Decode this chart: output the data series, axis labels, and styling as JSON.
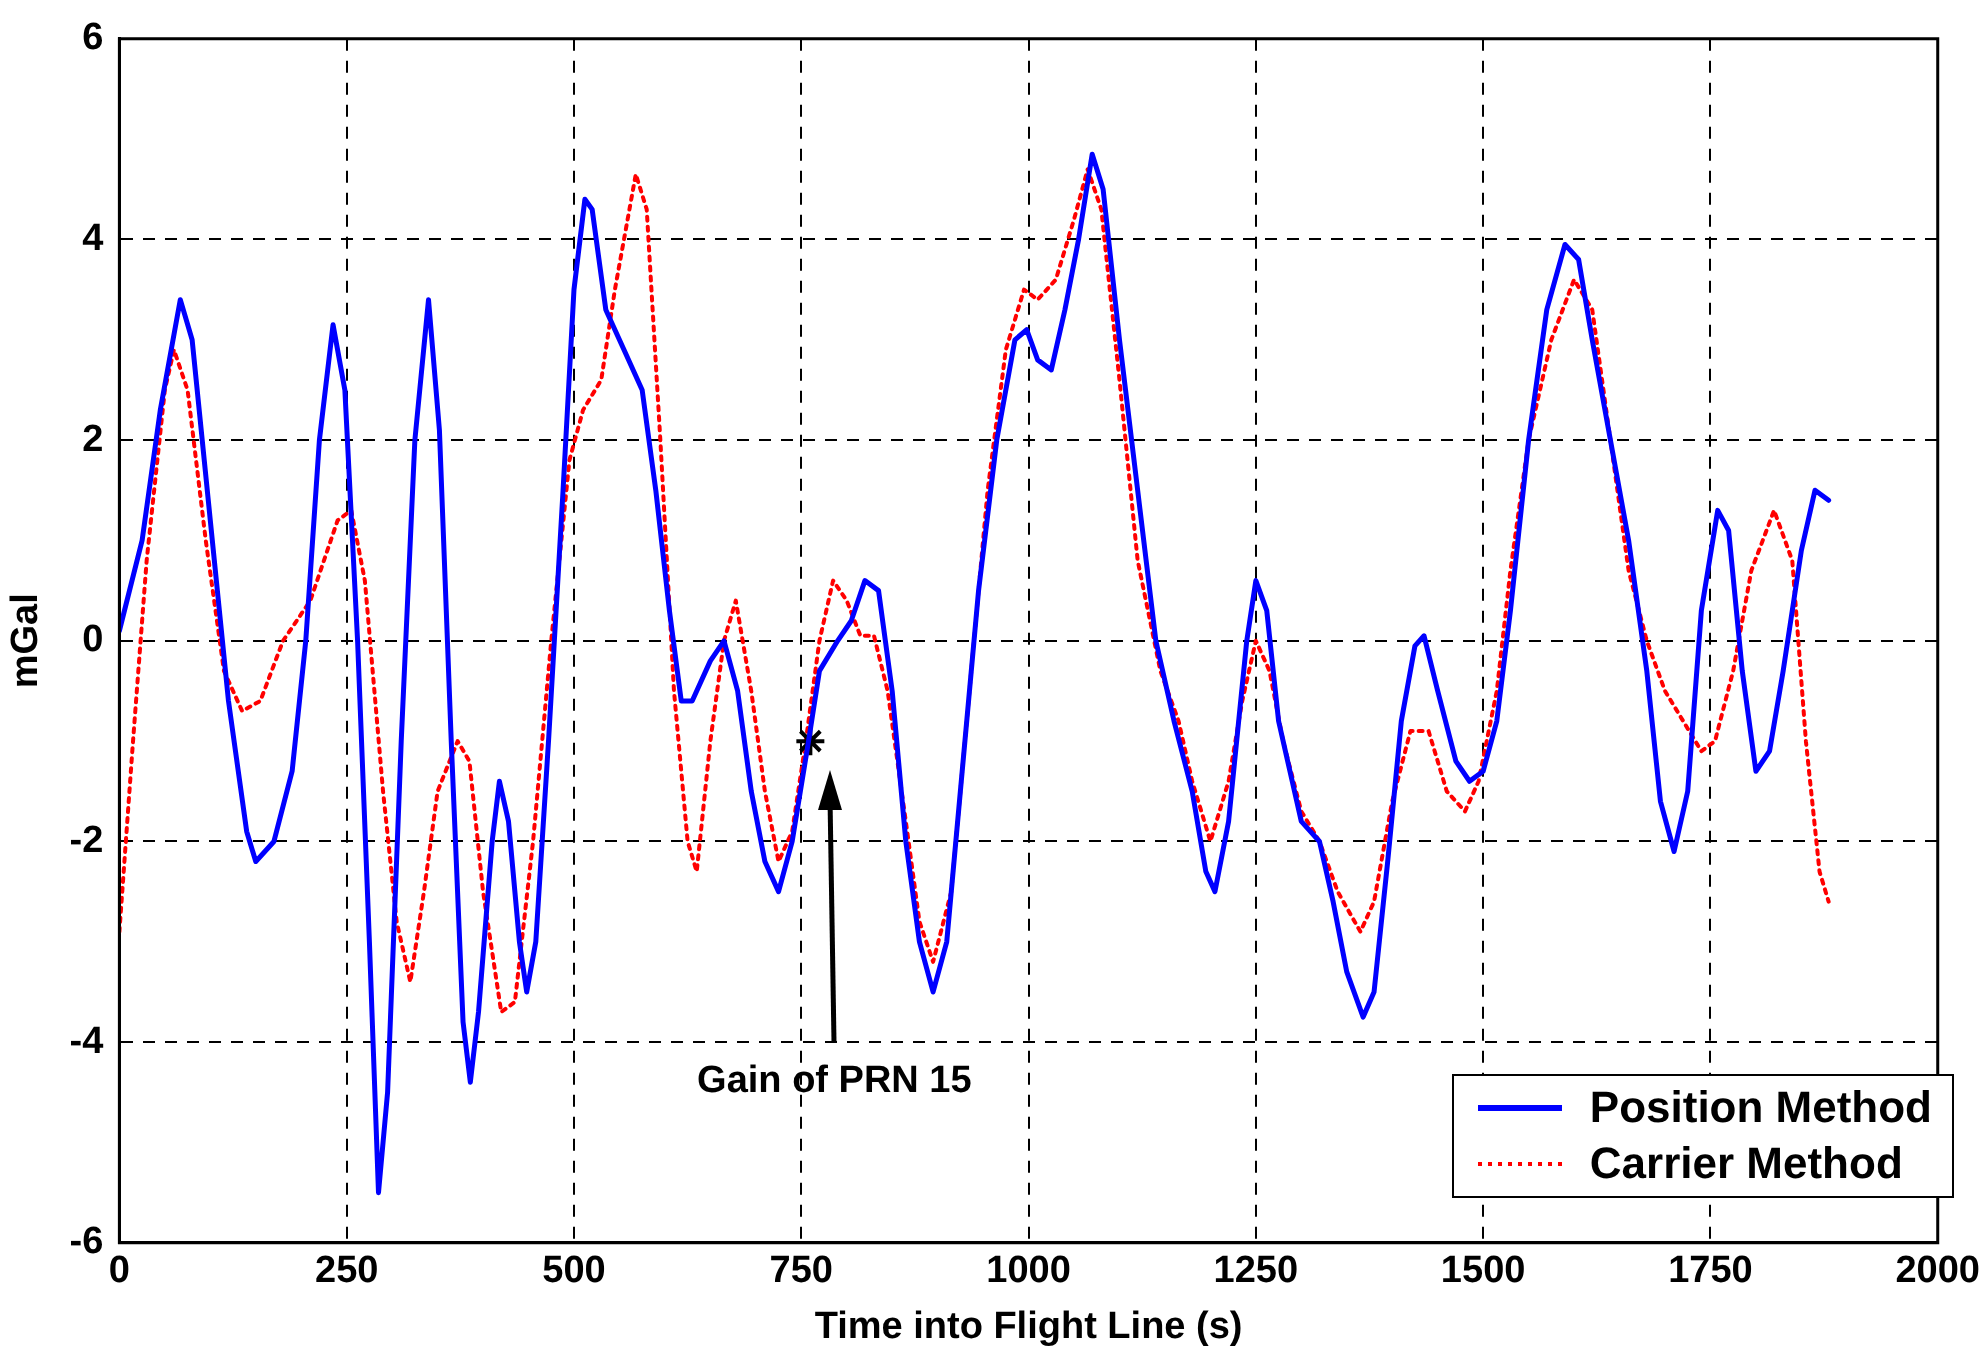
{
  "chart_data": {
    "type": "line",
    "xlabel": "Time into Flight Line (s)",
    "ylabel": "mGal",
    "xlim": [
      0,
      2000
    ],
    "xticks": [
      0,
      250,
      500,
      750,
      1000,
      1250,
      1500,
      1750,
      2000
    ],
    "ylim": [
      -6,
      6
    ],
    "yticks": [
      -6,
      -4,
      -2,
      0,
      2,
      4,
      6
    ],
    "grid": true,
    "legend": "bottom right",
    "marker": "none",
    "annotations": [
      "Gain of PRN 15"
    ],
    "series": [
      {
        "name": "Position Method",
        "color": "#0000ff",
        "line_style": "solid",
        "x": [
          0,
          25,
          45,
          67,
          80,
          100,
          120,
          140,
          150,
          170,
          190,
          205,
          220,
          235,
          248,
          262,
          275,
          285,
          295,
          310,
          325,
          340,
          352,
          365,
          378,
          386,
          395,
          410,
          418,
          428,
          440,
          448,
          458,
          472,
          488,
          500,
          512,
          520,
          535,
          555,
          575,
          590,
          605,
          618,
          630,
          650,
          665,
          680,
          695,
          710,
          725,
          740,
          758,
          770,
          790,
          805,
          820,
          835,
          850,
          865,
          880,
          895,
          910,
          925,
          945,
          965,
          985,
          998,
          1010,
          1025,
          1040,
          1055,
          1070,
          1082,
          1100,
          1120,
          1140,
          1160,
          1180,
          1195,
          1205,
          1220,
          1240,
          1250,
          1262,
          1275,
          1290,
          1300,
          1320,
          1335,
          1350,
          1368,
          1380,
          1395,
          1410,
          1425,
          1435,
          1450,
          1470,
          1485,
          1500,
          1515,
          1530,
          1550,
          1570,
          1590,
          1605,
          1620,
          1640,
          1660,
          1680,
          1695,
          1710,
          1725,
          1740,
          1758,
          1770,
          1785,
          1800,
          1815,
          1830,
          1850,
          1865,
          1880
        ],
        "values": [
          0.1,
          1.0,
          2.3,
          3.4,
          3.0,
          1.2,
          -0.6,
          -1.9,
          -2.2,
          -2.0,
          -1.3,
          0.0,
          2.0,
          3.15,
          2.5,
          0,
          -3.0,
          -5.5,
          -4.5,
          -1,
          2.0,
          3.4,
          2.1,
          -1,
          -3.8,
          -4.4,
          -3.7,
          -2.0,
          -1.4,
          -1.8,
          -3.0,
          -3.5,
          -3.0,
          -1,
          1.5,
          3.5,
          4.4,
          4.3,
          3.3,
          2.9,
          2.5,
          1.5,
          0.3,
          -0.6,
          -0.6,
          -0.2,
          0.0,
          -0.5,
          -1.5,
          -2.2,
          -2.5,
          -2.0,
          -1.0,
          -0.3,
          0.0,
          0.2,
          0.6,
          0.5,
          -0.5,
          -2.0,
          -3.0,
          -3.5,
          -3.0,
          -1.5,
          0.5,
          2.0,
          3.0,
          3.1,
          2.8,
          2.7,
          3.3,
          4.0,
          4.85,
          4.5,
          3.0,
          1.5,
          0.0,
          -0.8,
          -1.5,
          -2.3,
          -2.5,
          -1.8,
          0.0,
          0.6,
          0.3,
          -0.8,
          -1.4,
          -1.8,
          -2.0,
          -2.6,
          -3.3,
          -3.75,
          -3.5,
          -2.2,
          -0.8,
          -0.05,
          0.05,
          -0.5,
          -1.2,
          -1.4,
          -1.3,
          -0.8,
          0.3,
          2.0,
          3.3,
          3.95,
          3.8,
          3.0,
          2.0,
          1.0,
          -0.3,
          -1.6,
          -2.1,
          -1.5,
          0.3,
          1.3,
          1.1,
          -0.3,
          -1.3,
          -1.1,
          -0.3,
          0.9,
          1.5,
          1.4
        ]
      },
      {
        "type": "scatter",
        "marker": "cross",
        "color": "#000000",
        "x": [
          760
        ],
        "values": [
          -1
        ]
      },
      {
        "name": "Carrier Method",
        "color": "#ff0000",
        "line_style": "dotted",
        "x": [
          0,
          15,
          30,
          50,
          60,
          75,
          95,
          115,
          135,
          155,
          180,
          210,
          240,
          255,
          270,
          290,
          305,
          320,
          335,
          350,
          372,
          385,
          400,
          420,
          435,
          455,
          475,
          495,
          510,
          530,
          545,
          568,
          580,
          595,
          610,
          625,
          635,
          650,
          665,
          678,
          695,
          710,
          725,
          740,
          755,
          770,
          785,
          800,
          815,
          830,
          845,
          865,
          880,
          895,
          915,
          935,
          955,
          975,
          995,
          1010,
          1030,
          1050,
          1065,
          1080,
          1100,
          1120,
          1145,
          1165,
          1180,
          1200,
          1220,
          1235,
          1250,
          1265,
          1280,
          1300,
          1320,
          1340,
          1365,
          1380,
          1400,
          1420,
          1440,
          1460,
          1480,
          1495,
          1515,
          1530,
          1550,
          1575,
          1600,
          1620,
          1640,
          1660,
          1680,
          1700,
          1720,
          1740,
          1755,
          1775,
          1795,
          1820,
          1840,
          1855,
          1870,
          1880
        ],
        "values": [
          -2.9,
          -1,
          0.8,
          2.5,
          2.9,
          2.5,
          1.0,
          -0.3,
          -0.7,
          -0.6,
          0.0,
          0.4,
          1.2,
          1.3,
          0.6,
          -1.5,
          -2.8,
          -3.4,
          -2.5,
          -1.5,
          -1.0,
          -1.2,
          -2.5,
          -3.7,
          -3.6,
          -2.0,
          0.0,
          1.8,
          2.3,
          2.6,
          3.5,
          4.65,
          4.3,
          2.0,
          -0.5,
          -2.0,
          -2.3,
          -1.0,
          0.0,
          0.4,
          -0.5,
          -1.5,
          -2.2,
          -1.9,
          -1.0,
          0.0,
          0.6,
          0.4,
          0.05,
          0.05,
          -0.5,
          -1.8,
          -2.8,
          -3.2,
          -2.5,
          -0.5,
          1.5,
          2.9,
          3.5,
          3.4,
          3.6,
          4.2,
          4.7,
          4.3,
          2.6,
          0.8,
          -0.3,
          -0.8,
          -1.4,
          -2.0,
          -1.4,
          -0.6,
          0.0,
          -0.3,
          -1.0,
          -1.7,
          -2.0,
          -2.5,
          -2.9,
          -2.6,
          -1.6,
          -0.9,
          -0.9,
          -1.5,
          -1.7,
          -1.4,
          -0.5,
          0.7,
          2.0,
          3.0,
          3.6,
          3.3,
          2.0,
          0.7,
          0.0,
          -0.5,
          -0.8,
          -1.1,
          -1.0,
          -0.3,
          0.7,
          1.3,
          0.8,
          -1.0,
          -2.3,
          -2.6
        ]
      }
    ]
  }
}
